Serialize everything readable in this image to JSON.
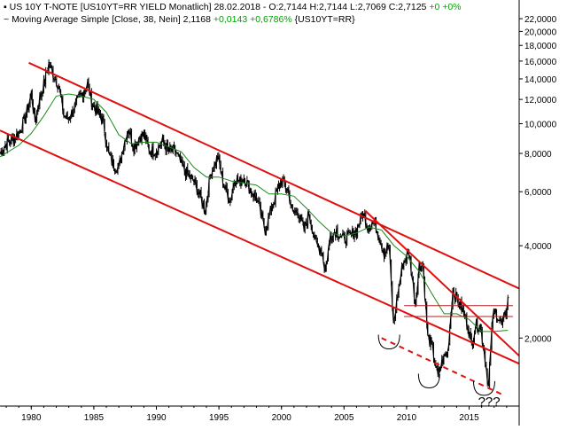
{
  "header": {
    "line1_prefix": "US 10Y T-NOTE [US10YT=RR YIELD Monatlich] 28.02.2018 - O:2,7144 H:2,7144 L:2,7069 C:2,7125",
    "line1_change": "+0 +0%",
    "line2_prefix": "Moving Average Simple [Close, 38, Nein] 2,1168",
    "line2_change": "+0,0143 +0,6786%",
    "line2_suffix": "{US10YT=RR}"
  },
  "annotation_text": "???",
  "colors": {
    "price": "#000000",
    "moving_average": "#1a8a1a",
    "trendlines": "#e01010",
    "support_band": "#b02020",
    "axis": "#000000"
  },
  "chart_data": {
    "type": "line",
    "title": "US 10Y T-NOTE [US10YT=RR YIELD Monatlich]",
    "xlabel": "",
    "ylabel": "",
    "y_scale": "log",
    "xlim": [
      1977.5,
      2019.0
    ],
    "ylim": [
      1.2,
      24.0
    ],
    "x_ticks": [
      1980,
      1985,
      1990,
      1995,
      2000,
      2005,
      2010,
      2015
    ],
    "x_tick_labels": [
      "1980",
      "1985",
      "1990",
      "1995",
      "2000",
      "2005",
      "2010",
      "2015"
    ],
    "y_ticks": [
      2,
      4,
      6,
      8,
      10,
      12,
      14,
      16,
      18,
      20,
      22
    ],
    "y_tick_labels": [
      "2,0000",
      "4,0000",
      "6,0000",
      "8,0000",
      "10,0000",
      "12,0000",
      "14,0000",
      "16,0000",
      "18,0000",
      "20,0000",
      "22,0000"
    ],
    "series": [
      {
        "name": "US 10Y T-NOTE",
        "x": [
          1977.5,
          1978.0,
          1978.5,
          1979.0,
          1979.5,
          1980.0,
          1980.3,
          1980.6,
          1981.0,
          1981.4,
          1981.75,
          1982.2,
          1982.6,
          1982.9,
          1983.3,
          1983.8,
          1984.2,
          1984.5,
          1984.9,
          1985.3,
          1985.7,
          1986.2,
          1986.6,
          1987.0,
          1987.4,
          1987.75,
          1988.2,
          1988.6,
          1989.0,
          1989.5,
          1990.0,
          1990.5,
          1991.0,
          1991.5,
          1992.0,
          1992.5,
          1993.0,
          1993.5,
          1993.9,
          1994.3,
          1994.9,
          1995.4,
          1995.9,
          1996.3,
          1996.6,
          1997.0,
          1997.5,
          1998.0,
          1998.7,
          1999.2,
          1999.7,
          2000.0,
          2000.5,
          2000.9,
          2001.3,
          2001.8,
          2002.2,
          2002.8,
          2003.2,
          2003.5,
          2003.9,
          2004.4,
          2004.9,
          2005.5,
          2006.0,
          2006.5,
          2006.9,
          2007.4,
          2007.8,
          2008.2,
          2008.6,
          2008.95,
          2009.3,
          2009.7,
          2010.2,
          2010.7,
          2011.0,
          2011.3,
          2011.7,
          2012.0,
          2012.5,
          2012.9,
          2013.3,
          2013.7,
          2013.95,
          2014.4,
          2014.9,
          2015.2,
          2015.5,
          2015.9,
          2016.2,
          2016.55,
          2016.9,
          2017.2,
          2017.6,
          2017.95,
          2018.1
        ],
        "values": [
          8.0,
          8.6,
          8.9,
          9.3,
          10.4,
          12.5,
          10.2,
          11.8,
          13.4,
          15.7,
          14.5,
          13.3,
          10.6,
          10.4,
          10.9,
          12.1,
          12.8,
          13.5,
          11.5,
          10.9,
          10.3,
          7.9,
          7.3,
          7.2,
          8.6,
          9.7,
          8.4,
          9.0,
          9.2,
          8.1,
          8.2,
          8.8,
          8.1,
          8.2,
          7.3,
          6.8,
          6.5,
          5.8,
          5.2,
          6.8,
          7.8,
          6.3,
          5.6,
          6.7,
          6.4,
          6.7,
          6.1,
          5.7,
          4.5,
          5.3,
          6.1,
          6.5,
          6.1,
          5.1,
          5.2,
          4.5,
          5.1,
          4.0,
          3.9,
          3.3,
          4.3,
          4.5,
          4.2,
          4.3,
          4.5,
          5.1,
          4.6,
          4.8,
          4.3,
          3.8,
          4.0,
          2.2,
          2.8,
          3.5,
          3.8,
          2.6,
          3.4,
          3.5,
          2.0,
          1.9,
          1.5,
          1.7,
          1.8,
          2.9,
          2.7,
          2.5,
          2.2,
          1.9,
          2.2,
          2.2,
          1.8,
          1.4,
          2.4,
          2.4,
          2.2,
          2.4,
          2.71
        ]
      },
      {
        "name": "Moving Average Simple",
        "x": [
          1977.5,
          1979.0,
          1980.0,
          1981.0,
          1982.0,
          1983.0,
          1984.0,
          1985.0,
          1986.0,
          1987.0,
          1988.0,
          1989.0,
          1990.0,
          1991.0,
          1992.0,
          1993.0,
          1994.0,
          1995.0,
          1996.0,
          1997.0,
          1998.0,
          1999.0,
          2000.0,
          2001.0,
          2002.0,
          2003.0,
          2004.0,
          2005.0,
          2006.0,
          2007.0,
          2008.0,
          2009.0,
          2010.0,
          2011.0,
          2012.0,
          2013.0,
          2014.0,
          2015.0,
          2016.0,
          2017.0,
          2018.1
        ],
        "values": [
          7.8,
          8.5,
          9.3,
          10.6,
          12.3,
          12.5,
          12.3,
          12.0,
          10.9,
          9.2,
          8.6,
          8.7,
          8.7,
          8.4,
          8.1,
          7.2,
          6.7,
          6.7,
          6.5,
          6.4,
          6.3,
          5.9,
          5.9,
          5.8,
          5.3,
          4.8,
          4.4,
          4.3,
          4.4,
          4.6,
          4.5,
          4.0,
          3.7,
          3.3,
          2.8,
          2.4,
          2.4,
          2.3,
          2.1,
          2.1,
          2.12
        ]
      }
    ],
    "trendlines": [
      {
        "kind": "channel-upper",
        "x": [
          1979.8,
          2019.0
        ],
        "y": [
          15.8,
          2.9
        ]
      },
      {
        "kind": "channel-lower",
        "x": [
          1977.5,
          2019.0
        ],
        "y": [
          9.5,
          1.65
        ]
      },
      {
        "kind": "downtrend",
        "x": [
          2006.7,
          2019.0
        ],
        "y": [
          5.2,
          1.75
        ]
      },
      {
        "kind": "support-projection-dashed",
        "x": [
          2008.0,
          2017.8
        ],
        "y": [
          2.0,
          1.3
        ]
      },
      {
        "kind": "horizontal-band-top",
        "x": [
          2009.8,
          2018.5
        ],
        "y": [
          2.55,
          2.55
        ]
      },
      {
        "kind": "horizontal-band-bottom",
        "x": [
          2009.8,
          2018.5
        ],
        "y": [
          2.35,
          2.35
        ]
      }
    ],
    "grid": false,
    "legend": "top-left"
  }
}
